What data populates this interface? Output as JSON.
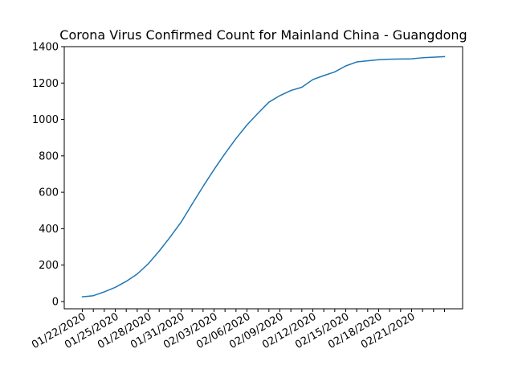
{
  "chart_data": {
    "type": "line",
    "title": "Corona Virus Confirmed Count for Mainland China - Guangdong",
    "xlabel": "",
    "ylabel": "",
    "ylim": [
      -40,
      1400
    ],
    "y_ticks": [
      0,
      200,
      400,
      600,
      800,
      1000,
      1200,
      1400
    ],
    "x_tick_labels": [
      "01/22/2020",
      "01/25/2020",
      "01/28/2020",
      "01/31/2020",
      "02/03/2020",
      "02/06/2020",
      "02/09/2020",
      "02/12/2020",
      "02/15/2020",
      "02/18/2020",
      "02/21/2020"
    ],
    "x": [
      "01/22/2020",
      "01/23/2020",
      "01/24/2020",
      "01/25/2020",
      "01/26/2020",
      "01/27/2020",
      "01/28/2020",
      "01/29/2020",
      "01/30/2020",
      "01/31/2020",
      "02/01/2020",
      "02/02/2020",
      "02/03/2020",
      "02/04/2020",
      "02/05/2020",
      "02/06/2020",
      "02/07/2020",
      "02/08/2020",
      "02/09/2020",
      "02/10/2020",
      "02/11/2020",
      "02/12/2020",
      "02/13/2020",
      "02/14/2020",
      "02/15/2020",
      "02/16/2020",
      "02/17/2020",
      "02/18/2020",
      "02/19/2020",
      "02/20/2020",
      "02/21/2020",
      "02/22/2020",
      "02/23/2020",
      "02/24/2020"
    ],
    "series": [
      {
        "color": "#1f77b4",
        "values": [
          26,
          32,
          53,
          78,
          111,
          151,
          207,
          277,
          354,
          436,
          535,
          632,
          725,
          813,
          895,
          970,
          1034,
          1095,
          1131,
          1159,
          1177,
          1219,
          1241,
          1261,
          1294,
          1316,
          1322,
          1328,
          1331,
          1332,
          1333,
          1339,
          1342,
          1345
        ]
      }
    ]
  }
}
